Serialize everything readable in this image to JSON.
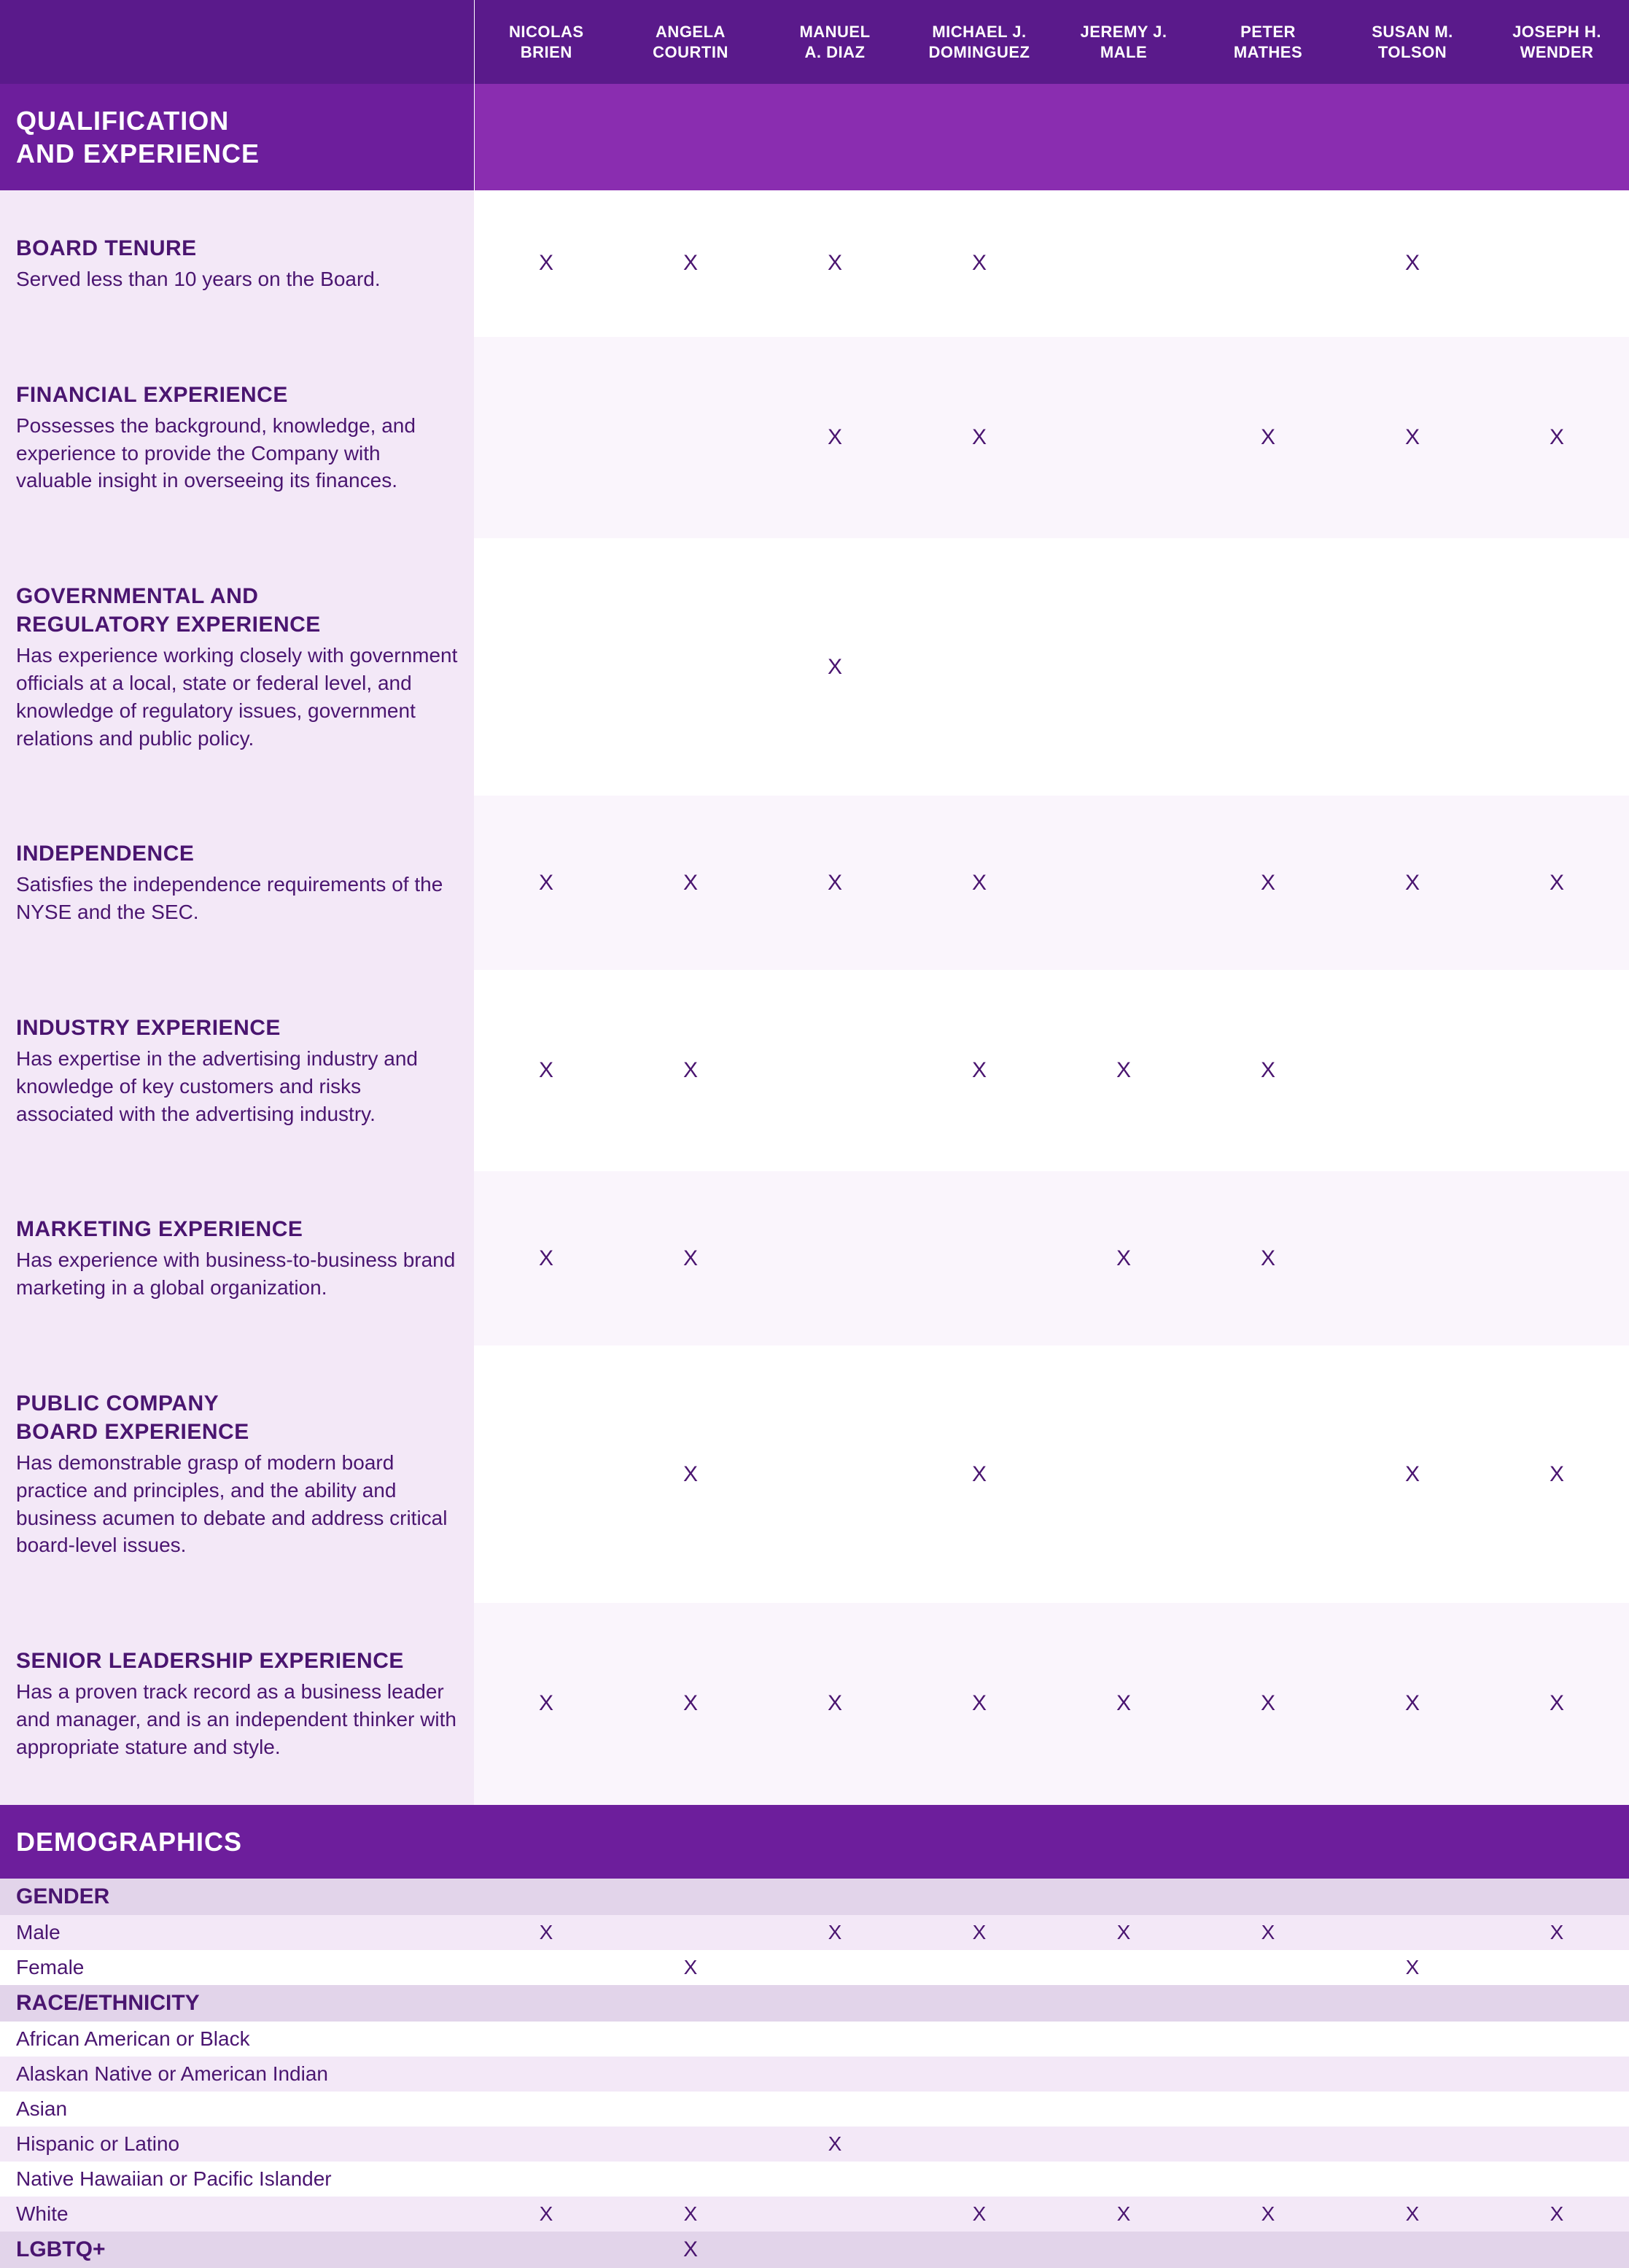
{
  "colors": {
    "header_bg": "#5a1a8b",
    "section_bg_main": "#8a2db0",
    "section_bg_first": "#6d1e9c",
    "qual_label_bg": "#f3e8f7",
    "qual_data_bg": "#ffffff",
    "qual_data_bg_alt": "#faf5fc",
    "demo_head_bg": "#e2d4ea",
    "text": "#4a1570",
    "header_text": "#ffffff"
  },
  "mark": "X",
  "people": [
    "NICOLAS\nBRIEN",
    "ANGELA\nCOURTIN",
    "MANUEL\nA. DIAZ",
    "MICHAEL J.\nDOMINGUEZ",
    "JEREMY J.\nMALE",
    "PETER\nMATHES",
    "SUSAN M.\nTOLSON",
    "JOSEPH H.\nWENDER"
  ],
  "section1_title": "QUALIFICATION\nAND EXPERIENCE",
  "qualifications": [
    {
      "title": "BOARD TENURE",
      "desc": "Served less than 10 years on the Board.",
      "marks": [
        true,
        true,
        true,
        true,
        false,
        false,
        true,
        false
      ]
    },
    {
      "title": "FINANCIAL EXPERIENCE",
      "desc": "Possesses the background, knowledge, and experience to provide the Company with valuable insight in overseeing its finances.",
      "marks": [
        false,
        false,
        true,
        true,
        false,
        true,
        true,
        true
      ]
    },
    {
      "title": "GOVERNMENTAL AND\nREGULATORY EXPERIENCE",
      "desc": "Has experience working closely with government officials at a local, state or federal level, and knowledge of regulatory issues, government relations and public policy.",
      "marks": [
        false,
        false,
        true,
        false,
        false,
        false,
        false,
        false
      ]
    },
    {
      "title": "INDEPENDENCE",
      "desc": "Satisfies the independence requirements of the NYSE and the SEC.",
      "marks": [
        true,
        true,
        true,
        true,
        false,
        true,
        true,
        true
      ]
    },
    {
      "title": "INDUSTRY EXPERIENCE",
      "desc": "Has expertise in the advertising industry and knowledge of key customers and risks associated with the advertising industry.",
      "marks": [
        true,
        true,
        false,
        true,
        true,
        true,
        false,
        false
      ]
    },
    {
      "title": "MARKETING EXPERIENCE",
      "desc": "Has experience with business-to-business brand marketing in a global organization.",
      "marks": [
        true,
        true,
        false,
        false,
        true,
        true,
        false,
        false
      ]
    },
    {
      "title": "PUBLIC COMPANY\nBOARD EXPERIENCE",
      "desc": "Has demonstrable grasp of modern board practice and principles, and the ability and business acumen to debate and address critical board-level issues.",
      "marks": [
        false,
        true,
        false,
        true,
        false,
        false,
        true,
        true
      ]
    },
    {
      "title": "SENIOR LEADERSHIP EXPERIENCE",
      "desc": "Has a proven track record as a business leader and manager, and is an independent thinker with appropriate stature and style.",
      "marks": [
        true,
        true,
        true,
        true,
        true,
        true,
        true,
        true
      ]
    }
  ],
  "section2_title": "DEMOGRAPHICS",
  "demographics": [
    {
      "heading": "GENDER",
      "heading_marks": null,
      "rows": [
        {
          "label": "Male",
          "marks": [
            true,
            false,
            true,
            true,
            true,
            true,
            false,
            true
          ],
          "white": false
        },
        {
          "label": "Female",
          "marks": [
            false,
            true,
            false,
            false,
            false,
            false,
            true,
            false
          ],
          "white": true
        }
      ]
    },
    {
      "heading": "RACE/ETHNICITY",
      "heading_marks": null,
      "rows": [
        {
          "label": "African American or Black",
          "marks": [
            false,
            false,
            false,
            false,
            false,
            false,
            false,
            false
          ],
          "white": true
        },
        {
          "label": "Alaskan Native or American Indian",
          "marks": [
            false,
            false,
            false,
            false,
            false,
            false,
            false,
            false
          ],
          "white": false
        },
        {
          "label": "Asian",
          "marks": [
            false,
            false,
            false,
            false,
            false,
            false,
            false,
            false
          ],
          "white": true
        },
        {
          "label": "Hispanic or Latino",
          "marks": [
            false,
            false,
            true,
            false,
            false,
            false,
            false,
            false
          ],
          "white": false
        },
        {
          "label": "Native Hawaiian or Pacific Islander",
          "marks": [
            false,
            false,
            false,
            false,
            false,
            false,
            false,
            false
          ],
          "white": true
        },
        {
          "label": "White",
          "marks": [
            true,
            true,
            false,
            true,
            true,
            true,
            true,
            true
          ],
          "white": false
        }
      ]
    },
    {
      "heading": "LGBTQ+",
      "heading_marks": [
        false,
        true,
        false,
        false,
        false,
        false,
        false,
        false
      ],
      "rows": []
    }
  ]
}
